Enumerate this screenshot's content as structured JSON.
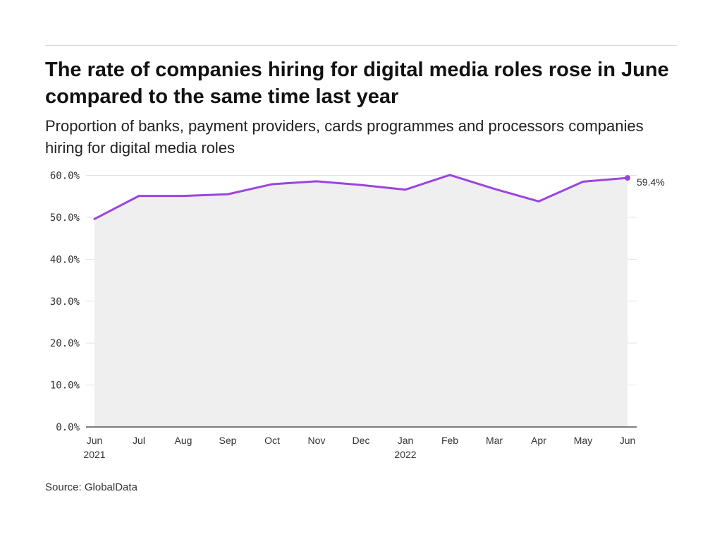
{
  "title": "The rate of companies hiring for digital media roles rose in June compared to the same time last year",
  "subtitle": "Proportion of banks, payment providers, cards programmes and processors companies hiring for digital media roles",
  "source": "Source: GlobalData",
  "colors": {
    "line": "#9b45e0",
    "area": "#efeff0",
    "grid": "#e2e2e2",
    "axis": "#333333"
  },
  "chart_data": {
    "type": "area",
    "x": [
      "Jun 2021",
      "Jul 2021",
      "Aug 2021",
      "Sep 2021",
      "Oct 2021",
      "Nov 2021",
      "Dec 2021",
      "Jan 2022",
      "Feb 2022",
      "Mar 2022",
      "Apr 2022",
      "May 2022",
      "Jun 2022"
    ],
    "x_tick_labels": [
      {
        "month": "Jun",
        "year": "2021"
      },
      {
        "month": "Jul",
        "year": ""
      },
      {
        "month": "Aug",
        "year": ""
      },
      {
        "month": "Sep",
        "year": ""
      },
      {
        "month": "Oct",
        "year": ""
      },
      {
        "month": "Nov",
        "year": ""
      },
      {
        "month": "Dec",
        "year": ""
      },
      {
        "month": "Jan",
        "year": "2022"
      },
      {
        "month": "Feb",
        "year": ""
      },
      {
        "month": "Mar",
        "year": ""
      },
      {
        "month": "Apr",
        "year": ""
      },
      {
        "month": "May",
        "year": ""
      },
      {
        "month": "Jun",
        "year": ""
      }
    ],
    "series": [
      {
        "values": [
          49.6,
          55.1,
          55.1,
          55.5,
          57.9,
          58.6,
          57.7,
          56.6,
          60.1,
          56.8,
          53.8,
          58.5,
          59.4
        ]
      }
    ],
    "ylim": [
      0,
      60
    ],
    "y_ticks": [
      0,
      10,
      20,
      30,
      40,
      50,
      60
    ],
    "y_tick_labels": [
      "0.0%",
      "10.0%",
      "20.0%",
      "30.0%",
      "40.0%",
      "50.0%",
      "60.0%"
    ],
    "end_label": "59.4%",
    "grid": true,
    "legend": "none"
  }
}
